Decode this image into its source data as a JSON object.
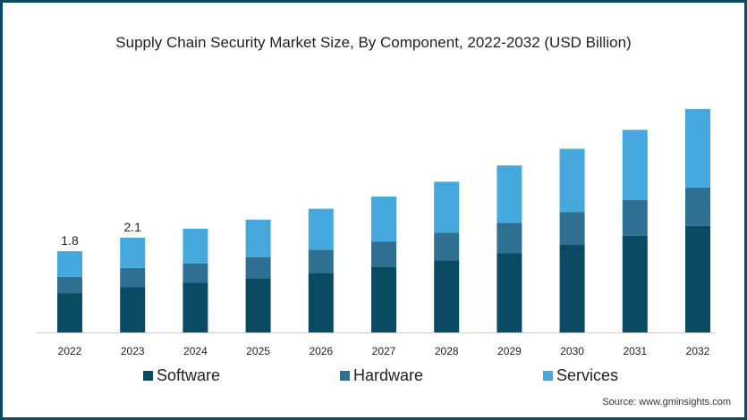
{
  "chart_data": {
    "type": "bar",
    "stacked": true,
    "title": "Supply Chain Security Market Size, By Component, 2022-2032 (USD Billion)",
    "xlabel": "",
    "ylabel": "",
    "ylim": [
      0,
      5
    ],
    "grid": false,
    "legend_position": "bottom",
    "categories": [
      "2022",
      "2023",
      "2024",
      "2025",
      "2026",
      "2027",
      "2028",
      "2029",
      "2030",
      "2031",
      "2032"
    ],
    "series": [
      {
        "name": "Software",
        "color": "#0a4a63",
        "values": [
          0.87,
          1.0,
          1.1,
          1.2,
          1.32,
          1.46,
          1.6,
          1.76,
          1.94,
          2.14,
          2.36
        ]
      },
      {
        "name": "Hardware",
        "color": "#2e6f92",
        "values": [
          0.36,
          0.43,
          0.43,
          0.47,
          0.51,
          0.55,
          0.61,
          0.67,
          0.73,
          0.79,
          0.85
        ]
      },
      {
        "name": "Services",
        "color": "#45a9dd",
        "values": [
          0.57,
          0.67,
          0.77,
          0.83,
          0.91,
          1.0,
          1.13,
          1.27,
          1.4,
          1.56,
          1.74
        ]
      }
    ],
    "data_labels": [
      "1.8",
      "2.1"
    ],
    "source": "Source: www.gminsights.com"
  }
}
